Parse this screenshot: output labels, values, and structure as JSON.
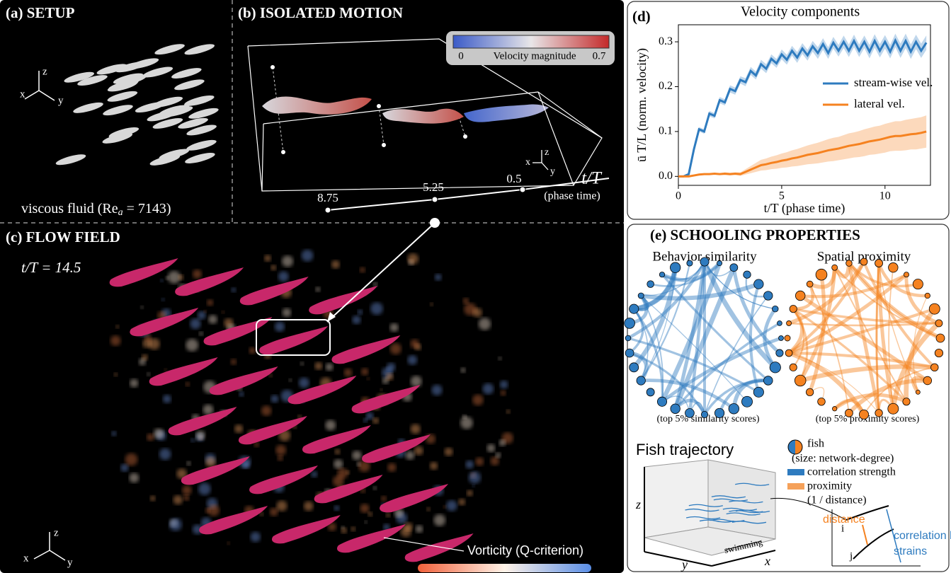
{
  "panels": {
    "a": {
      "label": "(a) SETUP",
      "fluid": {
        "text": "viscous fluid (Re",
        "subscript": "a",
        "rest": " = 7143)"
      },
      "axes": [
        "x",
        "y",
        "z"
      ]
    },
    "b": {
      "label": "(b) ISOLATED MOTION",
      "colorbar": {
        "min": "0",
        "title": "Velocity magnitude",
        "max": "0.7"
      },
      "time_axis": {
        "label": "t/T",
        "note": "(phase time)",
        "ticks": [
          "8.75",
          "5.25",
          "0.5"
        ]
      },
      "axes": [
        "x",
        "y",
        "z"
      ]
    },
    "c": {
      "label": "(c) FLOW FIELD",
      "time": "t/T = 14.5",
      "vorticity": "Vorticity (Q-criterion)",
      "axes": [
        "x",
        "y",
        "z"
      ]
    },
    "d": {
      "label": "(d)"
    },
    "e": {
      "label": "(e) SCHOOLING PROPERTIES",
      "behavior": "Behavior similarity",
      "spatial": "Spatial proximity",
      "behavior_caption": "(top 5% similarity scores)",
      "spatial_caption": "(top 5% proximity scores)",
      "trajectory": "Fish trajectory",
      "legend": {
        "fish": "fish",
        "fish_note": "(size: network-degree)",
        "correlation": "correlation strength",
        "proximity": "proximity",
        "proximity_note": "(1 / distance)"
      },
      "traj_axes": [
        "z",
        "y",
        "x"
      ],
      "swimming": "swimming",
      "inset": {
        "i": "i",
        "j": "j",
        "distance": "distance",
        "correlation": "correlation by",
        "correlation2": "strains"
      }
    }
  },
  "chart_data": {
    "type": "line",
    "title": "Velocity components",
    "xlabel": "t/T (phase time)",
    "ylabel": "ū T/L (norm. velocity)",
    "xlim": [
      0,
      12.2
    ],
    "ylim": [
      -0.02,
      0.338
    ],
    "xticks": [
      0,
      5,
      10
    ],
    "yticks": [
      {
        "value": 0,
        "label": "0.0"
      },
      0.1,
      0.2,
      0.3
    ],
    "legend": "right",
    "x": [
      0,
      0.25,
      0.5,
      0.75,
      1,
      1.25,
      1.5,
      1.75,
      2,
      2.25,
      2.5,
      2.75,
      3,
      3.25,
      3.5,
      3.75,
      4,
      4.25,
      4.5,
      4.75,
      5,
      5.25,
      5.5,
      5.75,
      6,
      6.25,
      6.5,
      6.75,
      7,
      7.25,
      7.5,
      7.75,
      8,
      8.25,
      8.5,
      8.75,
      9,
      9.25,
      9.5,
      9.75,
      10,
      10.25,
      10.5,
      10.75,
      11,
      11.25,
      11.5,
      11.75,
      12
    ],
    "series": [
      {
        "name": "stream-wise vel.",
        "color": "#2e7bbf",
        "values": [
          0,
          0,
          0.005,
          0.06,
          0.105,
          0.1,
          0.14,
          0.135,
          0.17,
          0.165,
          0.195,
          0.19,
          0.215,
          0.21,
          0.235,
          0.225,
          0.25,
          0.24,
          0.262,
          0.252,
          0.272,
          0.26,
          0.28,
          0.265,
          0.285,
          0.27,
          0.29,
          0.275,
          0.295,
          0.275,
          0.298,
          0.28,
          0.3,
          0.28,
          0.302,
          0.28,
          0.3,
          0.278,
          0.302,
          0.28,
          0.3,
          0.278,
          0.303,
          0.28,
          0.302,
          0.278,
          0.3,
          0.28,
          0.298
        ],
        "spread": [
          0,
          0,
          0.002,
          0.004,
          0.005,
          0.005,
          0.006,
          0.006,
          0.007,
          0.007,
          0.008,
          0.008,
          0.008,
          0.009,
          0.009,
          0.009,
          0.01,
          0.01,
          0.01,
          0.01,
          0.011,
          0.011,
          0.011,
          0.012,
          0.012,
          0.012,
          0.012,
          0.013,
          0.013,
          0.013,
          0.013,
          0.013,
          0.014,
          0.014,
          0.014,
          0.014,
          0.014,
          0.015,
          0.015,
          0.015,
          0.015,
          0.015,
          0.015,
          0.016,
          0.016,
          0.016,
          0.016,
          0.016,
          0.016
        ]
      },
      {
        "name": "lateral vel.",
        "color": "#f58220",
        "values": [
          0,
          0,
          0,
          0.002,
          0.004,
          0.005,
          0.005,
          0.006,
          0.005,
          0.006,
          0.005,
          0.006,
          0.005,
          0.01,
          0.015,
          0.02,
          0.025,
          0.027,
          0.03,
          0.032,
          0.035,
          0.037,
          0.04,
          0.042,
          0.045,
          0.048,
          0.05,
          0.052,
          0.055,
          0.058,
          0.06,
          0.062,
          0.065,
          0.068,
          0.07,
          0.072,
          0.075,
          0.078,
          0.08,
          0.082,
          0.085,
          0.088,
          0.09,
          0.09,
          0.092,
          0.094,
          0.095,
          0.097,
          0.1
        ],
        "spread": [
          0,
          0,
          0,
          0.001,
          0.002,
          0.002,
          0.002,
          0.002,
          0.002,
          0.003,
          0.003,
          0.003,
          0.004,
          0.006,
          0.008,
          0.01,
          0.012,
          0.013,
          0.014,
          0.015,
          0.016,
          0.017,
          0.018,
          0.019,
          0.02,
          0.021,
          0.022,
          0.023,
          0.024,
          0.025,
          0.026,
          0.026,
          0.027,
          0.028,
          0.028,
          0.029,
          0.03,
          0.03,
          0.031,
          0.031,
          0.032,
          0.032,
          0.033,
          0.033,
          0.034,
          0.034,
          0.035,
          0.035,
          0.036
        ]
      }
    ]
  }
}
